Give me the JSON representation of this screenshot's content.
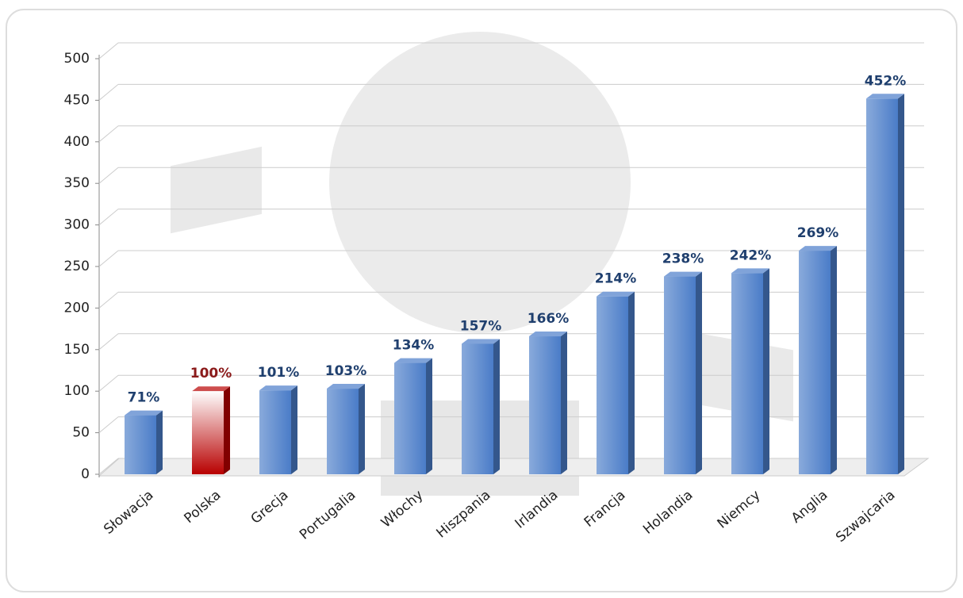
{
  "chart_data": {
    "type": "bar",
    "categories": [
      "Słowacja",
      "Polska",
      "Grecja",
      "Portugalia",
      "Włochy",
      "Hiszpania",
      "Irlandia",
      "Francja",
      "Holandia",
      "Niemcy",
      "Anglia",
      "Szwajcaria"
    ],
    "values": [
      71,
      100,
      101,
      103,
      134,
      157,
      166,
      214,
      238,
      242,
      269,
      452
    ],
    "value_labels": [
      "71%",
      "100%",
      "101%",
      "103%",
      "134%",
      "157%",
      "166%",
      "214%",
      "238%",
      "242%",
      "269%",
      "452%"
    ],
    "colors": [
      "#4a7cc8",
      "#b80000",
      "#4a7cc8",
      "#4a7cc8",
      "#4a7cc8",
      "#4a7cc8",
      "#4a7cc8",
      "#4a7cc8",
      "#4a7cc8",
      "#4a7cc8",
      "#4a7cc8",
      "#4a7cc8"
    ],
    "label_colors": [
      "#1f3f6e",
      "#8b1a1a",
      "#1f3f6e",
      "#1f3f6e",
      "#1f3f6e",
      "#1f3f6e",
      "#1f3f6e",
      "#1f3f6e",
      "#1f3f6e",
      "#1f3f6e",
      "#1f3f6e",
      "#1f3f6e"
    ],
    "ylim": [
      0,
      500
    ],
    "yticks": [
      0,
      50,
      100,
      150,
      200,
      250,
      300,
      350,
      400,
      450,
      500
    ],
    "grid": true
  }
}
